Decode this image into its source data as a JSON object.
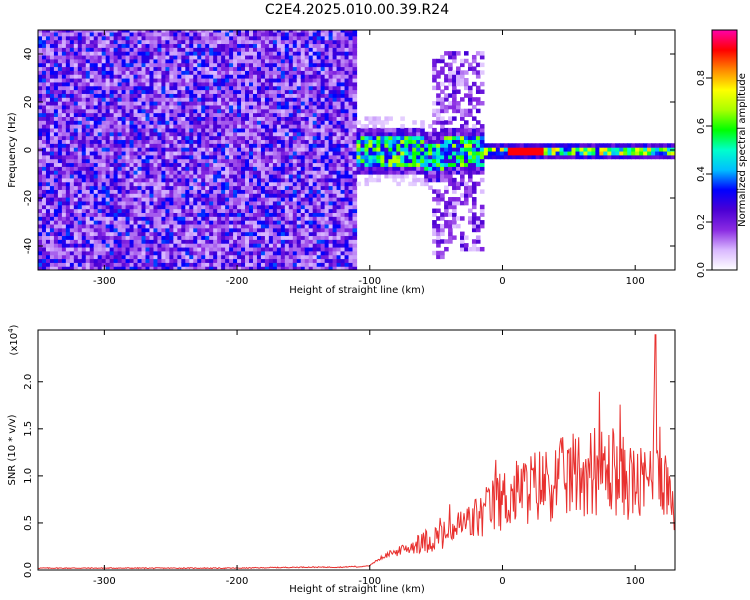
{
  "figure": {
    "title": "C2E4.2025.010.00.39.R24"
  },
  "chart_data": [
    {
      "type": "heatmap",
      "panel": "spectrogram",
      "xlabel": "Height of straight line (km)",
      "ylabel": "Frequency (Hz)",
      "xlim": [
        -350,
        130
      ],
      "ylim": [
        -50,
        50
      ],
      "xticks": [
        -300,
        -200,
        -100,
        0,
        100
      ],
      "yticks": [
        -40,
        -20,
        0,
        20,
        40
      ],
      "colorbar": {
        "label": "Normalized spectral amplitude",
        "range": [
          0,
          1
        ],
        "ticks": [
          "0.0",
          "0.2",
          "0.4",
          "0.6",
          "0.8"
        ],
        "colors": [
          "#ffffff",
          "#d9b8ff",
          "#8a2be2",
          "#4b00d4",
          "#0000ff",
          "#00bfff",
          "#00ffcc",
          "#00ff00",
          "#aaff00",
          "#ffff00",
          "#ff8800",
          "#ff0000",
          "#ff00aa"
        ]
      },
      "regions": [
        {
          "x": [
            -350,
            -111
          ],
          "f": [
            -50,
            50
          ],
          "amplitude": "0.15-0.45 broadband noise"
        },
        {
          "x": [
            -111,
            -15
          ],
          "f": [
            -10,
            8
          ],
          "amplitude": "0.2-0.7 signal near 0 Hz"
        },
        {
          "x": [
            -52,
            -15
          ],
          "f": [
            -45,
            38
          ],
          "amplitude": "0.1-0.3 spread"
        },
        {
          "x": [
            -15,
            130
          ],
          "f": [
            -3,
            3
          ],
          "amplitude": "0.3-1.0 narrow line at 0 Hz"
        }
      ]
    },
    {
      "type": "line",
      "panel": "snr",
      "xlabel": "Height of straight line (km)",
      "ylabel": "SNR (10 * v/v)",
      "yscale_label": "(x10",
      "yscale_exp": "4",
      "yscale_close": ")",
      "xlim": [
        -350,
        130
      ],
      "ylim": [
        0,
        2.55
      ],
      "xticks": [
        -300,
        -200,
        -100,
        0,
        100
      ],
      "yticks": [
        "0.0",
        "0.5",
        "1.0",
        "1.5",
        "2.0"
      ],
      "series_color": "#e8302e",
      "x": [
        -350,
        -300,
        -250,
        -200,
        -150,
        -120,
        -110,
        -100,
        -95,
        -90,
        -85,
        -80,
        -75,
        -70,
        -65,
        -60,
        -55,
        -50,
        -45,
        -40,
        -35,
        -30,
        -25,
        -20,
        -15,
        -10,
        -5,
        0,
        5,
        10,
        15,
        20,
        25,
        30,
        35,
        40,
        45,
        50,
        55,
        60,
        65,
        70,
        75,
        80,
        85,
        90,
        95,
        100,
        105,
        110,
        113,
        115,
        118,
        120,
        125,
        128,
        130
      ],
      "y": [
        0.02,
        0.02,
        0.02,
        0.02,
        0.03,
        0.03,
        0.04,
        0.06,
        0.13,
        0.18,
        0.22,
        0.24,
        0.27,
        0.3,
        0.33,
        0.36,
        0.38,
        0.42,
        0.44,
        0.47,
        0.52,
        0.57,
        0.6,
        0.66,
        0.7,
        0.78,
        0.85,
        0.9,
        0.94,
        0.98,
        1.02,
        1.05,
        1.08,
        1.1,
        1.12,
        1.15,
        1.18,
        1.2,
        1.24,
        1.26,
        1.28,
        1.28,
        1.28,
        1.27,
        1.25,
        1.2,
        1.16,
        1.1,
        1.08,
        1.15,
        1.4,
        2.45,
        1.55,
        1.25,
        1.05,
        0.95,
        0.9
      ]
    }
  ]
}
